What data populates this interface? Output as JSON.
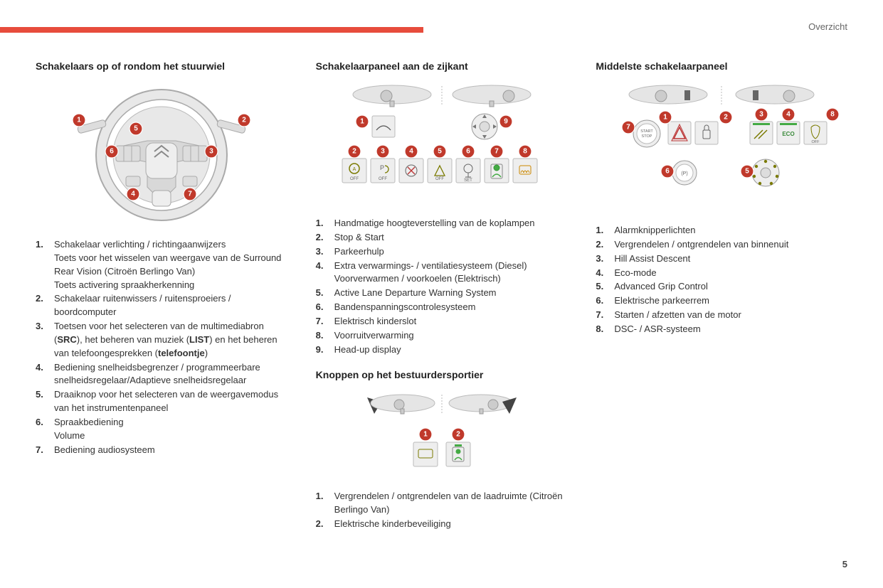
{
  "header": {
    "overview": "Overzicht",
    "page_number": "5",
    "accent_color": "#e74c3c",
    "badge_color": "#c0392b"
  },
  "col1": {
    "title": "Schakelaars op of rondom het stuurwiel",
    "items": [
      "Schakelaar verlichting / richtingaanwijzers\nToets voor het wisselen van weergave van de Surround Rear Vision (Citroën Berlingo Van)\nToets activering spraakherkenning",
      "Schakelaar ruitenwissers / ruitensproeiers / boordcomputer",
      "Toetsen voor het selecteren van de multimediabron (<b>SRC</b>), het beheren van muziek (<b>LIST</b>) en het beheren van telefoongesprekken (<b>telefoontje</b>)",
      "Bediening snelheidsbegrenzer / programmeerbare snelheidsregelaar/Adaptieve snelheidsregelaar",
      "Draaiknop voor het selecteren van de weergavemodus van het instrumentenpaneel",
      "Spraakbediening\nVolume",
      "Bediening audiosysteem"
    ]
  },
  "col2a": {
    "title": "Schakelaarpaneel aan de zijkant",
    "items": [
      "Handmatige hoogteverstelling van de koplampen",
      "Stop & Start",
      "Parkeerhulp",
      "Extra verwarmings- / ventilatiesysteem (Diesel)\nVoorverwarmen / voorkoelen (Elektrisch)",
      "Active Lane Departure Warning System",
      "Bandenspanningscontrolesysteem",
      "Elektrisch kinderslot",
      "Voorruitverwarming",
      "Head-up display"
    ]
  },
  "col2b": {
    "title": "Knoppen op het bestuurdersportier",
    "items": [
      "Vergrendelen / ontgrendelen van de laadruimte (Citroën Berlingo Van)",
      "Elektrische kinderbeveiliging"
    ]
  },
  "col3": {
    "title": "Middelste schakelaarpaneel",
    "items": [
      "Alarmknipperlichten",
      "Vergrendelen / ontgrendelen van binnenuit",
      "Hill Assist Descent",
      "Eco-mode",
      "Advanced Grip Control",
      "Elektrische parkeerrem",
      "Starten / afzetten van de motor",
      "DSC- / ASR-systeem"
    ]
  }
}
